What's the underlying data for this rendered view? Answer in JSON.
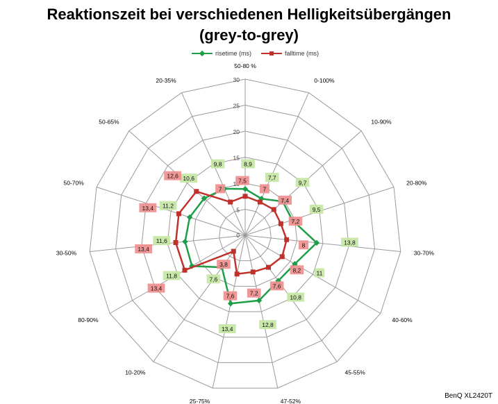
{
  "chart_data": {
    "type": "radar",
    "title_line1": "Reaktionszeit bei verschiedenen Helligkeitsübergängen",
    "title_line2": "(grey-to-grey)",
    "categories": [
      "50-80 %",
      "0-100%",
      "10-90%",
      "20-80%",
      "30-70%",
      "40-60%",
      "45-55%",
      "47-52%",
      "25-75%",
      "10-20%",
      "80-90%",
      "30-50%",
      "50-70%",
      "50-65%",
      "20-35%"
    ],
    "rlim": [
      0,
      30
    ],
    "ticks": [
      "0",
      "5",
      "10",
      "15",
      "20",
      "25",
      "30"
    ],
    "series": [
      {
        "name": "risetime (ms)",
        "color": "#1f9e4a",
        "label_bg": "#c5e5a5",
        "values": [
          8.9,
          7.7,
          9.7,
          9.5,
          13.8,
          11,
          10.8,
          12.8,
          13.4,
          7.6,
          11.8,
          11.6,
          11.2,
          10.6,
          9.8
        ],
        "labels": [
          "8,9",
          "7,7",
          "9,7",
          "9,5",
          "13,8",
          "11",
          "10,8",
          "12,8",
          "13,4",
          "7,6",
          "11,8",
          "11,6",
          "11,2",
          "10,6",
          "9,8"
        ]
      },
      {
        "name": "falltime (ms)",
        "color": "#c0312b",
        "label_bg": "#ef8f8f",
        "values": [
          7.5,
          7,
          7.4,
          7.2,
          8,
          8.2,
          7.6,
          7.2,
          7.6,
          3.8,
          13.4,
          13.4,
          13.4,
          12.6,
          7
        ],
        "labels": [
          "7,5",
          "7",
          "7,4",
          "7,2",
          "8",
          "8,2",
          "7,6",
          "7,2",
          "7,6",
          "3,8",
          "13,4",
          "13,4",
          "13,4",
          "12,6",
          "7"
        ]
      }
    ],
    "grid": true,
    "legend_position": "top"
  },
  "watermark": "BenQ XL2420T"
}
